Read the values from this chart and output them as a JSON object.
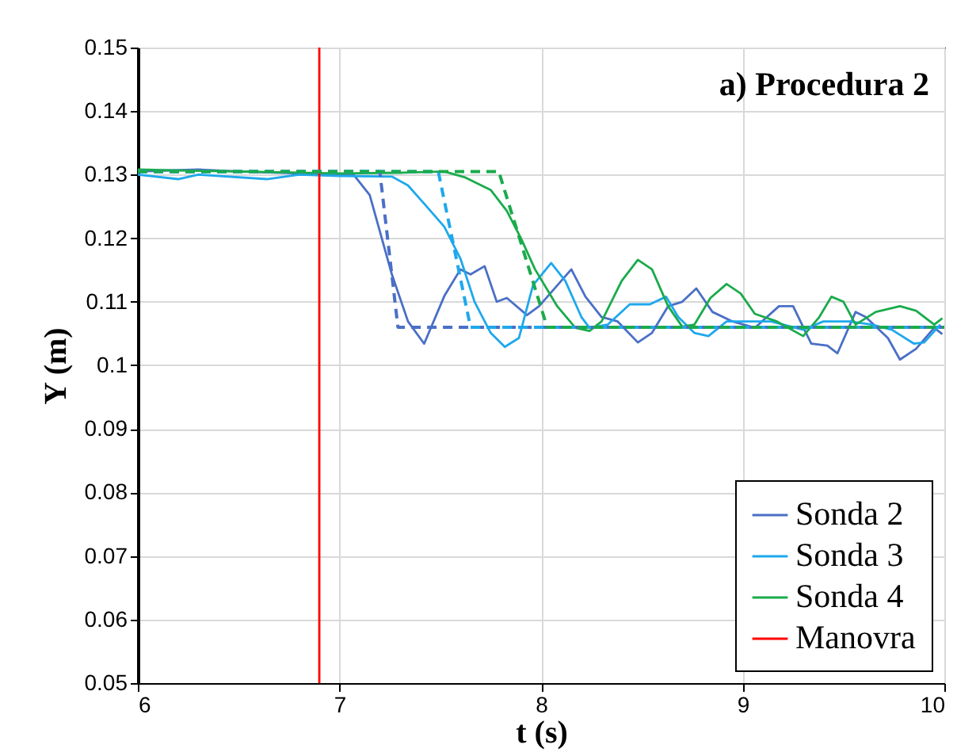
{
  "chart_data": {
    "type": "line",
    "title": "a) Procedura 2",
    "xlabel": "t (s)",
    "ylabel": "Y (m)",
    "xlim": [
      6,
      10
    ],
    "xticks": [
      6,
      7,
      8,
      9,
      10
    ],
    "ylim": [
      0.05,
      0.15
    ],
    "yticks": [
      0.05,
      0.06,
      0.07,
      0.08,
      0.09,
      0.1,
      0.11,
      0.12,
      0.13,
      0.14,
      0.15
    ],
    "grid": true,
    "legend": "bottom right",
    "marker": "none",
    "line_style": "solid",
    "series": [
      {
        "name": "Sonda 2",
        "color": "#4a6fc6",
        "x": [
          6,
          6.3,
          6.5,
          6.8,
          7,
          7.07,
          7.15,
          7.26,
          7.34,
          7.42,
          7.52,
          7.6,
          7.65,
          7.72,
          7.78,
          7.83,
          7.93,
          7.99,
          8.15,
          8.22,
          8.3,
          8.38,
          8.48,
          8.55,
          8.63,
          8.7,
          8.77,
          8.85,
          8.95,
          9.06,
          9.18,
          9.25,
          9.34,
          9.42,
          9.47,
          9.56,
          9.61,
          9.72,
          9.78,
          9.86,
          9.95,
          9.99
        ],
        "values": [
          0.1305,
          0.1308,
          0.1305,
          0.1302,
          0.13,
          0.13,
          0.1268,
          0.1143,
          0.1069,
          0.1034,
          0.1109,
          0.1151,
          0.1143,
          0.1156,
          0.11,
          0.1106,
          0.1079,
          0.1093,
          0.1151,
          0.1108,
          0.1076,
          0.1069,
          0.1036,
          0.1051,
          0.1093,
          0.11,
          0.1121,
          0.1084,
          0.1069,
          0.1059,
          0.1093,
          0.1093,
          0.1034,
          0.1031,
          0.1019,
          0.1084,
          0.1076,
          0.1043,
          0.1009,
          0.1026,
          0.1059,
          0.1049
        ]
      },
      {
        "name": "Sonda 3",
        "color": "#1ea8ec",
        "x": [
          6,
          6.2,
          6.3,
          6.64,
          6.8,
          7,
          7.26,
          7.34,
          7.41,
          7.52,
          7.6,
          7.67,
          7.75,
          7.82,
          7.89,
          7.96,
          8.05,
          8.12,
          8.2,
          8.24,
          8.33,
          8.44,
          8.54,
          8.62,
          8.68,
          8.76,
          8.83,
          8.92,
          9.03,
          9.14,
          9.3,
          9.4,
          9.53,
          9.64,
          9.74,
          9.85,
          9.9,
          9.98
        ],
        "values": [
          0.13,
          0.1293,
          0.13,
          0.1293,
          0.13,
          0.1298,
          0.1297,
          0.1283,
          0.1258,
          0.1218,
          0.1168,
          0.11,
          0.1051,
          0.1029,
          0.1043,
          0.1126,
          0.1161,
          0.1133,
          0.1076,
          0.1059,
          0.1064,
          0.1096,
          0.1096,
          0.1108,
          0.1076,
          0.1051,
          0.1046,
          0.1069,
          0.1069,
          0.1069,
          0.1056,
          0.1069,
          0.1069,
          0.1064,
          0.1056,
          0.1034,
          0.1036,
          0.1064
        ]
      },
      {
        "name": "Sonda 4",
        "color": "#1aab4b",
        "x": [
          6,
          6.5,
          7,
          7.3,
          7.52,
          7.62,
          7.75,
          7.83,
          7.9,
          7.97,
          8.08,
          8.17,
          8.24,
          8.3,
          8.4,
          8.48,
          8.55,
          8.63,
          8.7,
          8.76,
          8.84,
          8.92,
          8.99,
          9.06,
          9.17,
          9.3,
          9.38,
          9.44,
          9.5,
          9.56,
          9.66,
          9.78,
          9.86,
          9.95,
          9.99
        ],
        "values": [
          0.1308,
          0.1305,
          0.1302,
          0.1303,
          0.1305,
          0.1296,
          0.1276,
          0.1243,
          0.12,
          0.1151,
          0.1093,
          0.1059,
          0.1054,
          0.1069,
          0.1133,
          0.1166,
          0.1151,
          0.1093,
          0.1061,
          0.1064,
          0.1106,
          0.1128,
          0.1113,
          0.1081,
          0.1069,
          0.1046,
          0.1076,
          0.1108,
          0.11,
          0.1064,
          0.1084,
          0.1093,
          0.1086,
          0.1064,
          0.1074
        ]
      },
      {
        "name": "Manovra",
        "color": "#ff0000",
        "x": [
          6.9,
          6.9
        ],
        "values": [
          0.05,
          0.15
        ]
      },
      {
        "color": "#4a6fc6",
        "line_style": "dashed",
        "x": [
          6,
          7.2,
          7.29,
          10
        ],
        "values": [
          0.1305,
          0.1305,
          0.106,
          0.106
        ]
      },
      {
        "color": "#1ea8ec",
        "line_style": "dashed",
        "x": [
          6,
          7.49,
          7.65,
          10
        ],
        "values": [
          0.1305,
          0.1305,
          0.106,
          0.106
        ]
      },
      {
        "color": "#1aab4b",
        "line_style": "dashed",
        "x": [
          6,
          7.79,
          8.03,
          10
        ],
        "values": [
          0.1305,
          0.1305,
          0.106,
          0.106
        ]
      }
    ]
  }
}
